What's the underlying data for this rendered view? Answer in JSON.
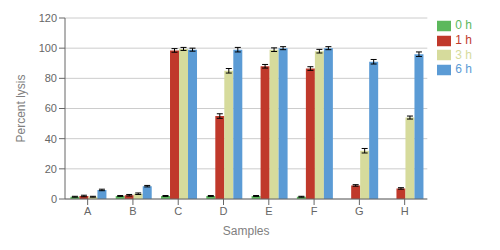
{
  "chart_data": {
    "type": "bar",
    "xlabel": "Samples",
    "ylabel": "Percent lysis",
    "categories": [
      "A",
      "B",
      "C",
      "D",
      "E",
      "F",
      "G",
      "H"
    ],
    "series": [
      {
        "name": "0 h",
        "color": "#5CB85C",
        "values": [
          1.5,
          2.0,
          2.0,
          2.0,
          2.0,
          1.5,
          0.0,
          0.0
        ],
        "errors": [
          0.3,
          0.3,
          0.3,
          0.3,
          0.3,
          0.3,
          0.0,
          0.0
        ]
      },
      {
        "name": "1 h",
        "color": "#C0392B",
        "values": [
          2.0,
          2.5,
          98.5,
          55.0,
          88.0,
          86.5,
          9.0,
          7.0
        ],
        "errors": [
          0.5,
          0.5,
          1.2,
          1.5,
          1.2,
          1.2,
          0.5,
          0.5
        ]
      },
      {
        "name": "3 h",
        "color": "#D6DB9C",
        "values": [
          1.5,
          3.5,
          99.5,
          85.0,
          99.0,
          98.0,
          32.0,
          54.0
        ],
        "errors": [
          0.3,
          0.5,
          1.0,
          1.5,
          1.2,
          1.2,
          1.5,
          1.0
        ]
      },
      {
        "name": "6 h",
        "color": "#5B9BD5",
        "values": [
          6.0,
          8.5,
          99.0,
          99.0,
          100.0,
          100.0,
          91.0,
          96.0
        ],
        "errors": [
          0.5,
          0.5,
          1.0,
          1.5,
          1.0,
          1.0,
          1.5,
          1.5
        ]
      }
    ],
    "ylim": [
      0,
      120
    ],
    "yticks": [
      0,
      20,
      40,
      60,
      80,
      100,
      120
    ],
    "grid": true,
    "legend": "right"
  }
}
